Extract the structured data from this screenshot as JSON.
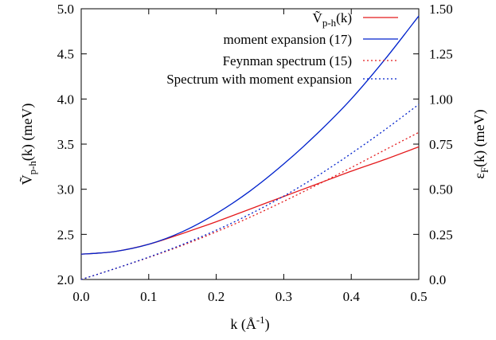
{
  "chart_data": {
    "type": "line",
    "title": "",
    "xlabel": "k  (Å",
    "xlabel_exp": "-1",
    "xlabel_close": ")",
    "ylabel_left": {
      "base": "Ṽ",
      "sub": "p-h",
      "tail": "(k)  (meV)"
    },
    "ylabel_right": {
      "base": "ε",
      "sub": "F",
      "tail": "(k)  (meV)"
    },
    "xlim": [
      0.0,
      0.5
    ],
    "ylim_left": [
      2.0,
      5.0
    ],
    "ylim_right": [
      0.0,
      1.5
    ],
    "x_ticks": [
      "0.0",
      "0.1",
      "0.2",
      "0.3",
      "0.4",
      "0.5"
    ],
    "y_ticks_left": [
      "2.0",
      "2.5",
      "3.0",
      "3.5",
      "4.0",
      "4.5",
      "5.0"
    ],
    "y_ticks_right": [
      "0.0",
      "0.25",
      "0.50",
      "0.75",
      "1.00",
      "1.25",
      "1.50"
    ],
    "grid": false,
    "legend_position": "top-right",
    "series": [
      {
        "name": "(k)",
        "name_base": "Ṽ",
        "name_sub": "p-h",
        "axis": "left",
        "color": "#e41a1c",
        "dash": "solid",
        "x": [
          0.0,
          0.05,
          0.1,
          0.15,
          0.2,
          0.25,
          0.3,
          0.35,
          0.4,
          0.45,
          0.5
        ],
        "y": [
          2.28,
          2.31,
          2.39,
          2.51,
          2.64,
          2.78,
          2.92,
          3.06,
          3.2,
          3.33,
          3.47
        ]
      },
      {
        "name": "moment expansion (17)",
        "axis": "left",
        "color": "#0022cc",
        "dash": "solid",
        "x": [
          0.0,
          0.05,
          0.1,
          0.15,
          0.2,
          0.25,
          0.3,
          0.35,
          0.4,
          0.45,
          0.5
        ],
        "y": [
          2.28,
          2.31,
          2.39,
          2.53,
          2.73,
          2.98,
          3.28,
          3.62,
          4.0,
          4.44,
          4.92
        ]
      },
      {
        "name": "Feynman spectrum (15)",
        "axis": "right",
        "color": "#e41a1c",
        "dash": "dotted",
        "x": [
          0.0,
          0.05,
          0.1,
          0.15,
          0.2,
          0.25,
          0.3,
          0.35,
          0.4,
          0.45,
          0.5
        ],
        "y": [
          0.0,
          0.06,
          0.122,
          0.189,
          0.264,
          0.345,
          0.433,
          0.525,
          0.62,
          0.718,
          0.815
        ]
      },
      {
        "name": "Spectrum with moment expansion",
        "axis": "right",
        "color": "#0022cc",
        "dash": "dotted",
        "x": [
          0.0,
          0.05,
          0.1,
          0.15,
          0.2,
          0.25,
          0.3,
          0.35,
          0.4,
          0.45,
          0.5
        ],
        "y": [
          0.0,
          0.06,
          0.124,
          0.194,
          0.273,
          0.362,
          0.462,
          0.574,
          0.698,
          0.83,
          0.97
        ]
      }
    ]
  }
}
